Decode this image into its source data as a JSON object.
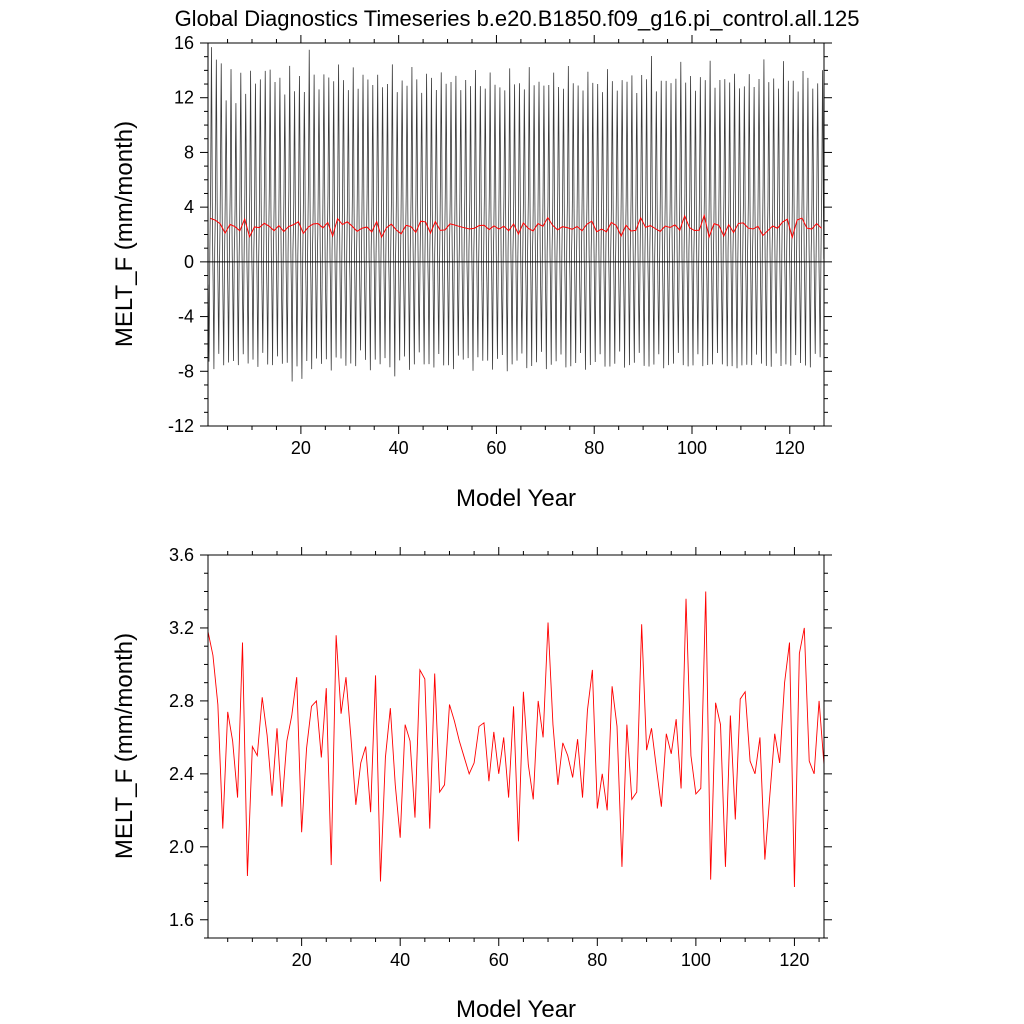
{
  "title": "Global Diagnostics Timeseries b.e20.B1850.f09_g16.pi_control.all.125",
  "colors": {
    "monthly": "#3a3a3a",
    "annual": "#ff0000",
    "zero_line": "#000000"
  },
  "chart_data": [
    {
      "type": "line",
      "xlabel": "Model Year",
      "ylabel": "MELT_F (mm/month)",
      "xlim": [
        1,
        127
      ],
      "ylim": [
        -12,
        16
      ],
      "xticks": [
        20,
        40,
        60,
        80,
        100,
        120
      ],
      "xtick_labels": [
        "20",
        "40",
        "60",
        "80",
        "100",
        "120"
      ],
      "yticks": [
        -12,
        -8,
        -4,
        0,
        4,
        8,
        12,
        16
      ],
      "ytick_labels": [
        "-12",
        "-8",
        "-4",
        "0",
        "4",
        "8",
        "12",
        "16"
      ],
      "grid": false,
      "zero_line": true,
      "series": [
        {
          "role": "monthly",
          "color": "#3a3a3a",
          "monthly_cycle": [
            -1.5,
            -4.0,
            -6.5,
            -3.0,
            0.5,
            2.5,
            5.0,
            9.5,
            13.0,
            9.0,
            4.0,
            0.5
          ],
          "annual_peak_max": [
            15.4,
            14.6,
            14.8,
            12.0,
            13.8,
            11.4,
            14.1,
            12.5,
            13.7,
            12.8,
            13.6,
            14.2,
            13.8,
            12.9,
            13.7,
            12.5,
            14.1,
            12.2,
            13.8,
            12.7,
            15.3,
            13.4,
            12.8,
            14.0,
            13.3,
            12.9,
            14.6,
            13.6,
            12.4,
            13.9,
            12.8,
            14.0,
            13.2,
            12.6,
            13.8,
            13.1,
            12.9,
            14.1,
            12.5,
            13.6,
            12.8,
            13.9,
            13.4,
            12.7,
            13.7,
            13.1,
            12.6,
            14.2,
            13.0,
            12.8,
            13.6,
            12.9,
            13.3,
            12.5,
            14.0,
            13.2,
            12.7,
            13.5,
            12.9,
            13.1,
            12.6,
            13.8,
            12.9,
            13.4,
            12.7,
            13.9,
            12.8,
            13.5,
            13.0,
            12.6,
            13.7,
            13.1,
            12.8,
            14.0,
            12.9,
            13.2,
            12.7,
            13.6,
            12.9,
            13.3,
            12.6,
            13.8,
            13.0,
            12.8,
            13.5,
            12.9,
            13.4,
            12.6,
            13.9,
            13.1,
            14.8,
            12.7,
            13.5,
            13.0,
            12.8,
            13.6,
            14.9,
            12.9,
            13.3,
            12.7,
            13.8,
            13.1,
            14.4,
            12.9,
            13.6,
            13.2,
            12.8,
            13.9,
            13.0,
            12.7,
            13.4,
            12.9,
            13.7,
            14.7,
            12.8,
            13.5,
            13.0,
            14.6,
            12.9,
            13.3,
            12.8,
            13.9,
            13.1,
            12.7,
            13.4,
            14.0
          ],
          "annual_trough_min": [
            -7.2,
            -7.5,
            -6.8,
            -7.9,
            -7.3,
            -6.9,
            -7.6,
            -7.1,
            -7.4,
            -6.8,
            -7.7,
            -7.0,
            -7.5,
            -7.2,
            -6.9,
            -7.8,
            -7.4,
            -8.4,
            -7.6,
            -8.9,
            -7.3,
            -7.5,
            -7.0,
            -7.8,
            -7.2,
            -7.6,
            -6.9,
            -7.4,
            -7.7,
            -7.1,
            -7.5,
            -6.8,
            -7.3,
            -7.6,
            -7.0,
            -7.8,
            -7.2,
            -7.4,
            -8.2,
            -7.5,
            -7.1,
            -7.6,
            -7.3,
            -6.9,
            -7.7,
            -7.2,
            -7.5,
            -7.0,
            -7.8,
            -7.3,
            -7.6,
            -7.1,
            -7.4,
            -6.8,
            -7.7,
            -7.2,
            -7.5,
            -7.0,
            -7.6,
            -7.3,
            -7.1,
            -7.8,
            -7.2,
            -7.4,
            -7.0,
            -7.6,
            -7.3,
            -7.5,
            -6.9,
            -7.7,
            -7.2,
            -7.4,
            -7.1,
            -7.6,
            -7.3,
            -7.5,
            -7.0,
            -7.8,
            -7.2,
            -7.4,
            -7.1,
            -7.6,
            -7.3,
            -7.5,
            -6.9,
            -7.7,
            -7.2,
            -7.4,
            -7.0,
            -7.6,
            -7.3,
            -7.5,
            -7.1,
            -7.8,
            -7.2,
            -7.4,
            -7.0,
            -7.6,
            -7.3,
            -7.5,
            -7.1,
            -7.7,
            -7.2,
            -7.4,
            -7.0,
            -7.6,
            -7.3,
            -7.5,
            -8.1,
            -7.7,
            -7.2,
            -7.4,
            -7.1,
            -7.6,
            -7.3,
            -7.5,
            -7.0,
            -7.8,
            -7.2,
            -7.4,
            -7.1,
            -7.6,
            -7.3,
            -7.5,
            -7.0,
            -7.2
          ]
        },
        {
          "role": "annual",
          "color": "#ff0000",
          "x_start": 1,
          "values": [
            3.18,
            3.05,
            2.78,
            2.1,
            2.74,
            2.58,
            2.27,
            3.12,
            1.84,
            2.55,
            2.5,
            2.82,
            2.61,
            2.28,
            2.65,
            2.22,
            2.58,
            2.72,
            2.93,
            2.08,
            2.54,
            2.77,
            2.8,
            2.49,
            2.87,
            1.9,
            3.16,
            2.73,
            2.93,
            2.6,
            2.23,
            2.46,
            2.55,
            2.19,
            2.94,
            1.81,
            2.49,
            2.76,
            2.34,
            2.05,
            2.67,
            2.58,
            2.16,
            2.97,
            2.92,
            2.1,
            2.95,
            2.3,
            2.34,
            2.78,
            2.69,
            2.58,
            2.49,
            2.4,
            2.46,
            2.66,
            2.68,
            2.36,
            2.63,
            2.4,
            2.6,
            2.27,
            2.77,
            2.03,
            2.85,
            2.45,
            2.26,
            2.8,
            2.6,
            3.23,
            2.67,
            2.34,
            2.57,
            2.5,
            2.38,
            2.59,
            2.27,
            2.75,
            2.97,
            2.21,
            2.4,
            2.2,
            2.88,
            2.66,
            1.89,
            2.67,
            2.26,
            2.3,
            3.22,
            2.53,
            2.65,
            2.43,
            2.22,
            2.62,
            2.51,
            2.7,
            2.32,
            3.36,
            2.5,
            2.29,
            2.32,
            3.4,
            1.82,
            2.79,
            2.67,
            1.89,
            2.72,
            2.15,
            2.81,
            2.85,
            2.47,
            2.4,
            2.6,
            1.93,
            2.28,
            2.62,
            2.46,
            2.9,
            3.12,
            1.78,
            3.06,
            3.2,
            2.47,
            2.4,
            2.8,
            2.45
          ]
        }
      ]
    },
    {
      "type": "line",
      "xlabel": "Model Year",
      "ylabel": "MELT_F (mm/month)",
      "xlim": [
        1,
        126
      ],
      "ylim": [
        1.5,
        3.6
      ],
      "xticks": [
        20,
        40,
        60,
        80,
        100,
        120
      ],
      "xtick_labels": [
        "20",
        "40",
        "60",
        "80",
        "100",
        "120"
      ],
      "yticks": [
        1.6,
        2.0,
        2.4,
        2.8,
        3.2,
        3.6
      ],
      "ytick_labels": [
        "1.6",
        "2.0",
        "2.4",
        "2.8",
        "3.2",
        "3.6"
      ],
      "grid": false,
      "series": [
        {
          "role": "annual",
          "color": "#ff0000",
          "x_start": 1,
          "source": "same annual mean series as top panel"
        }
      ]
    }
  ]
}
